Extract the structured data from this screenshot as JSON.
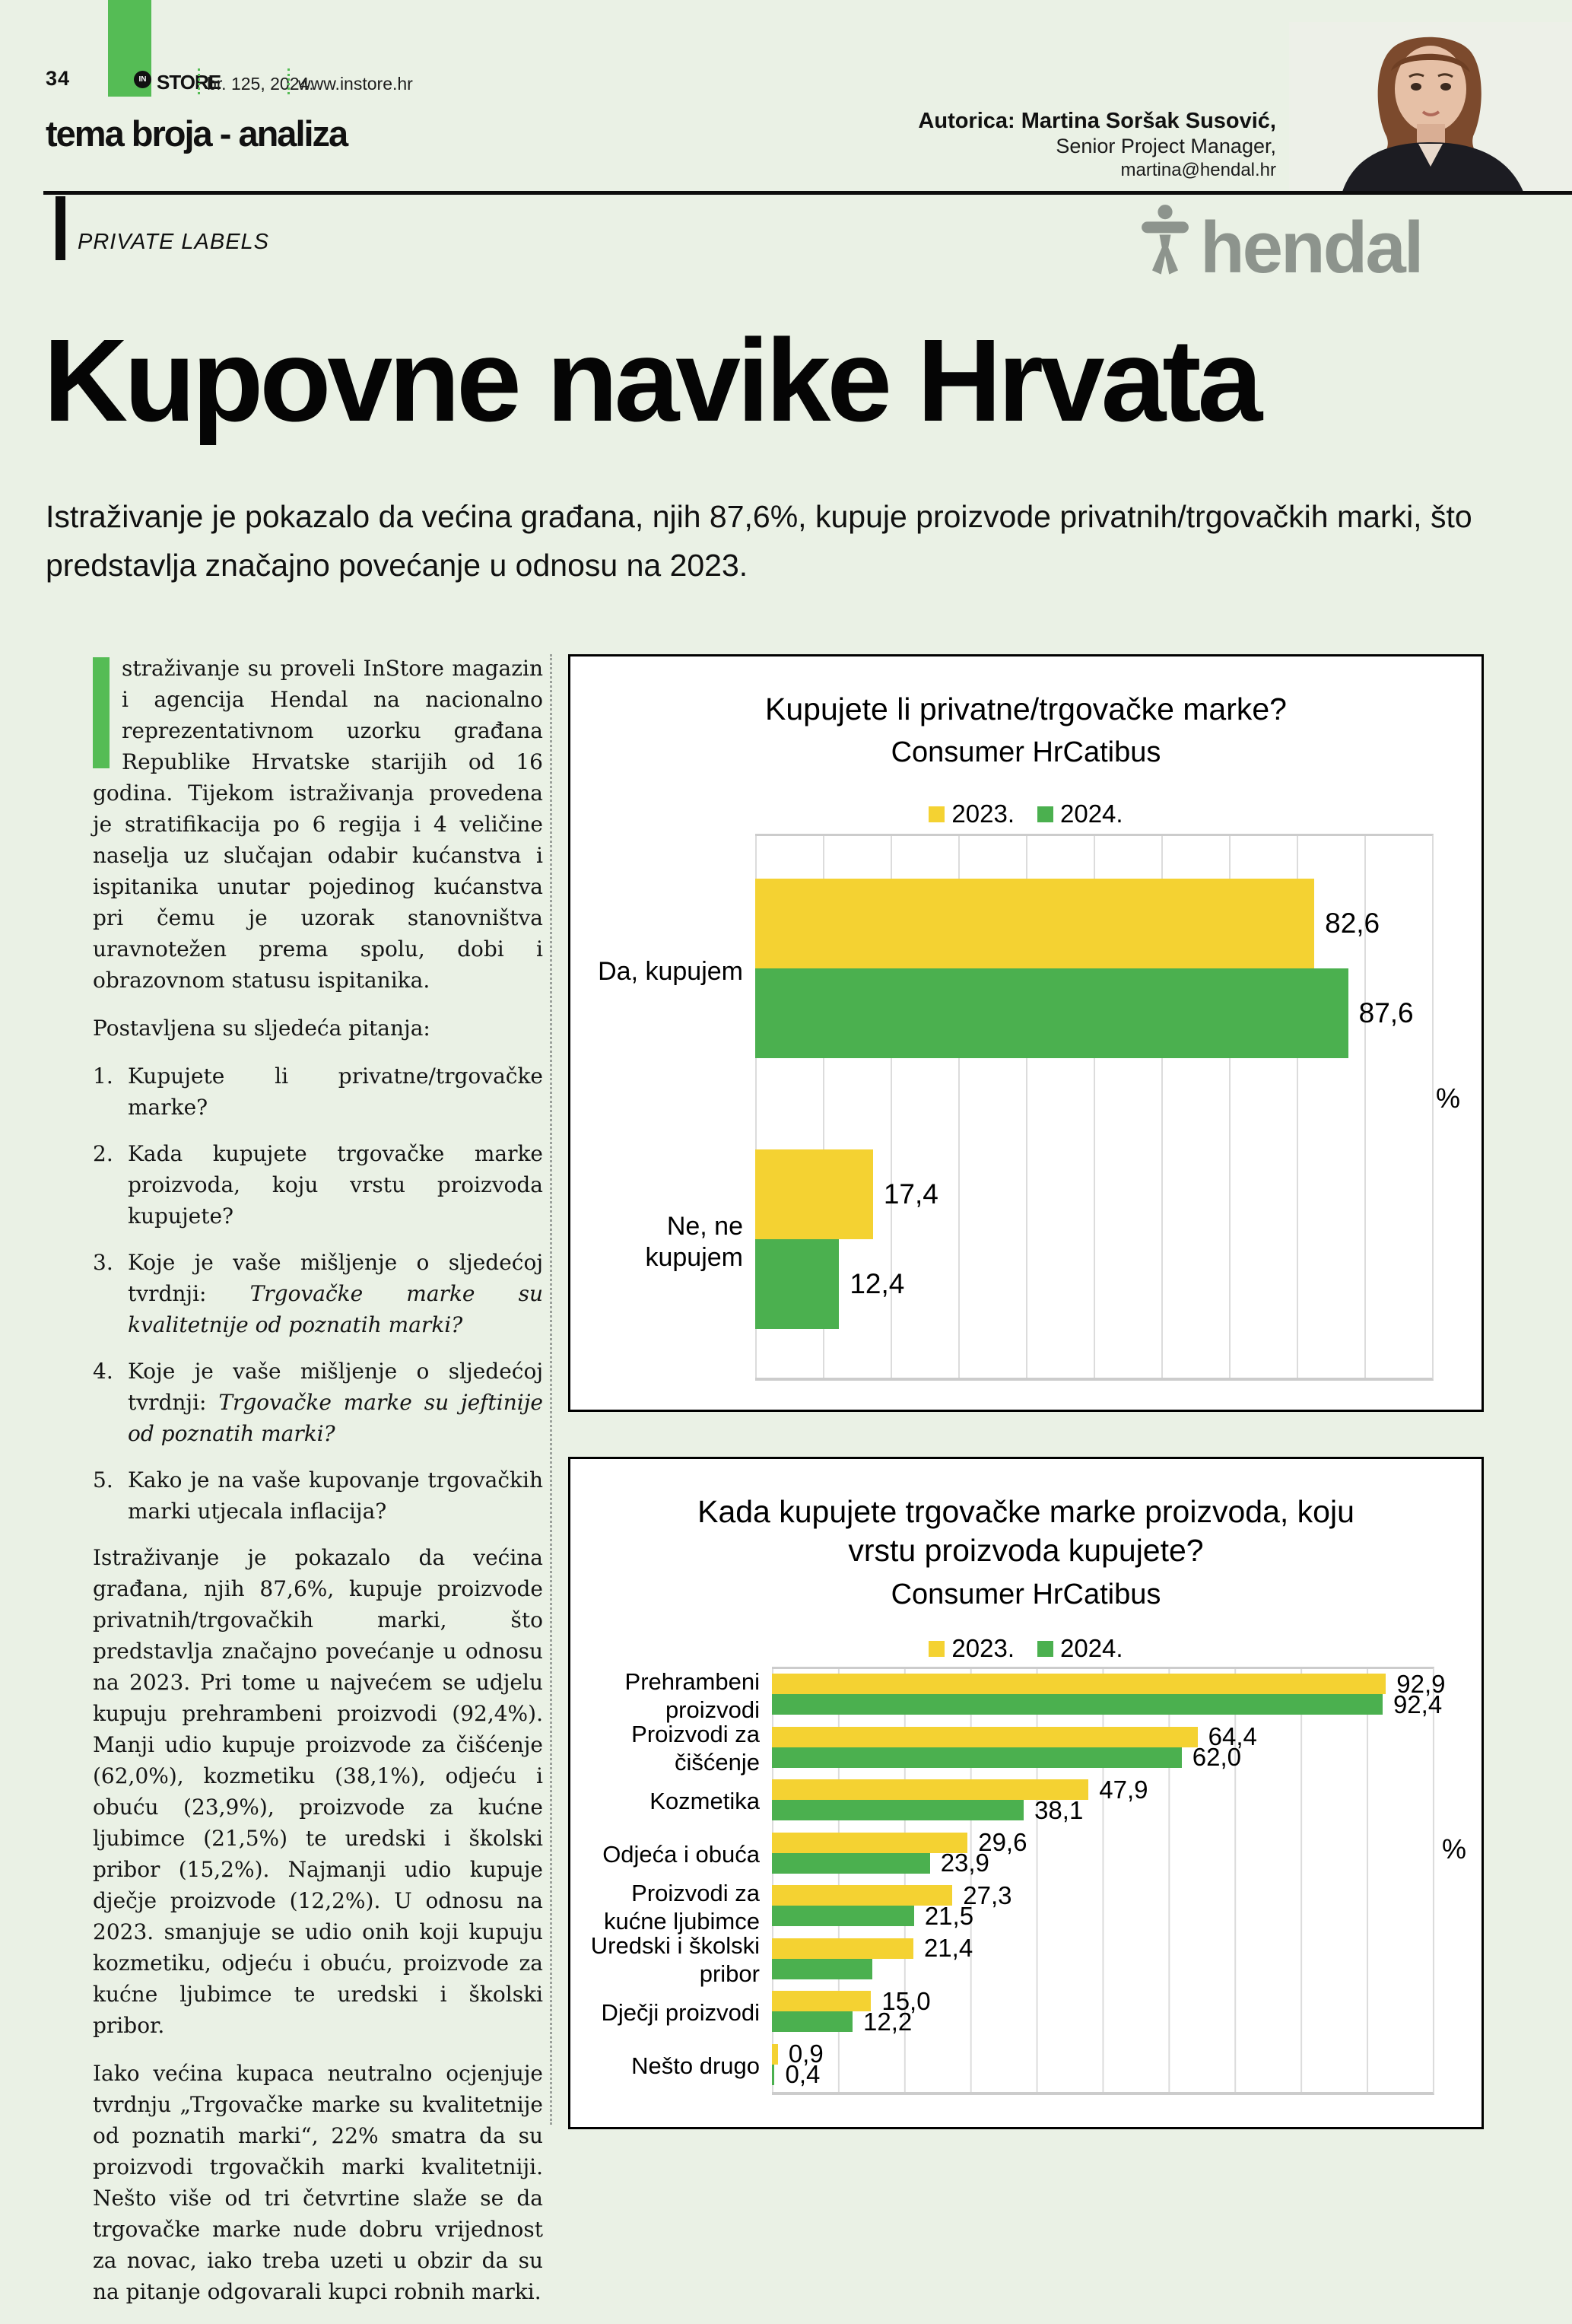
{
  "page": {
    "page_number": "34",
    "masthead": {
      "logo_in": "IN",
      "logo_store": "STORE",
      "issue": "br. 125, 2024.",
      "website": "www.instore.hr"
    },
    "section_title": "tema broja - analiza",
    "author": {
      "byline": "Autorica: Martina Soršak Susović,",
      "role": "Senior Project Manager,",
      "email": "martina@hendal.hr"
    },
    "kicker": "PRIVATE LABELS",
    "brand_logo": "hendal",
    "headline": "Kupovne navike Hrvata",
    "lead": "Istraživanje je pokazalo da većina građana, njih 87,6%, kupuje proizvode privatnih/trgovačkih marki, što predstavlja značajno povećanje u odnosu na 2023."
  },
  "article": {
    "para1": "straživanje su proveli InStore magazin i agencija Hendal na nacionalno reprezentativnom uzorku građana Republike Hrvatske starijih od 16 godina. Tijekom istraživanja provedena je stratifikacija po 6 regija i 4 veličine naselja uz slučajan odabir kućanstva i ispitanika unutar pojedinog kućanstva pri čemu je uzorak stanovništva uravnotežen prema spolu, dobi i obrazovnom statusu ispitanika.",
    "questions_intro": "Postavljena su sljedeća pitanja:",
    "questions": [
      {
        "num": "1.",
        "text": "Kupujete li privatne/trgovačke marke?",
        "italic": ""
      },
      {
        "num": "2.",
        "text": "Kada kupujete trgovačke marke proizvoda, koju vrstu proizvoda kupujete?",
        "italic": ""
      },
      {
        "num": "3.",
        "text": "Koje je vaše mišljenje o sljedećoj tvrdnji: ",
        "italic": "Trgovačke marke su kvalitetnije od poznatih marki?"
      },
      {
        "num": "4.",
        "text": "Koje je vaše mišljenje o sljedećoj tvrdnji: ",
        "italic": "Trgovačke marke su jeftinije od poznatih marki?"
      },
      {
        "num": "5.",
        "text": "Kako je na vaše kupovanje trgovačkih marki utjecala inflacija?",
        "italic": ""
      }
    ],
    "para2": "Istraživanje je pokazalo da većina građana, njih 87,6%,  kupuje proizvode privatnih/trgovačkih marki, što predstavlja značajno povećanje u odnosu na 2023. Pri tome u najvećem se udjelu kupuju prehrambeni proizvodi (92,4%). Manji udio kupuje proizvode za čišćenje (62,0%), kozmetiku (38,1%), odjeću i obuću (23,9%), proizvode za kućne ljubimce (21,5%) te uredski i školski pribor (15,2%). Najmanji udio kupuje dječje proizvode (12,2%). U odnosu na 2023. smanjuje se udio onih koji kupuju kozmetiku, odjeću i obuću, proizvode za kućne ljubimce te uredski i školski pribor.",
    "para3": "Iako većina kupaca neutralno ocjenjuje tvrdnju „Trgovačke marke su kvalitetnije od poznatih marki“, 22% smatra da su proizvodi trgovačkih marki kvalitetniji. Nešto više od tri četvrtine slaže se da trgovačke marke nude dobru vrijednost za novac, iako treba uzeti u obzir da su na pitanje odgovarali kupci robnih marki."
  },
  "colors": {
    "page_background": "#EAF1E5",
    "accent_green": "#55BC55",
    "bar_yellow": "#F4D232",
    "bar_green": "#4BB04F",
    "logo_gray": "#8D948D"
  },
  "chart_data": [
    {
      "type": "bar",
      "orientation": "horizontal",
      "title": "Kupujete li privatne/trgovačke marke?",
      "subtitle": "Consumer HrCatibus",
      "legend": [
        "2023.",
        "2024."
      ],
      "legend_colors": [
        "#F4D232",
        "#4BB04F"
      ],
      "legend_position": "top",
      "categories": [
        "Da, kupujem",
        "Ne, ne kupujem"
      ],
      "series": [
        {
          "name": "2023.",
          "values": [
            82.6,
            17.4
          ]
        },
        {
          "name": "2024.",
          "values": [
            87.6,
            12.4
          ]
        }
      ],
      "value_labels": [
        [
          "82,6",
          "17,4"
        ],
        [
          "87,6",
          "12,4"
        ]
      ],
      "axis_label": "%",
      "xlim": [
        0,
        100
      ],
      "grid": true
    },
    {
      "type": "bar",
      "orientation": "horizontal",
      "title": "Kada kupujete trgovačke marke proizvoda, koju vrstu proizvoda kupujete?",
      "subtitle": "Consumer HrCatibus",
      "legend": [
        "2023.",
        "2024."
      ],
      "legend_colors": [
        "#F4D232",
        "#4BB04F"
      ],
      "legend_position": "top",
      "categories": [
        "Prehrambeni proizvodi",
        "Proizvodi za čišćenje",
        "Kozmetika",
        "Odjeća i obuća",
        "Proizvodi za kućne ljubimce",
        "Uredski i školski pribor",
        "Dječji proizvodi",
        "Nešto drugo"
      ],
      "series": [
        {
          "name": "2023.",
          "values": [
            92.9,
            64.4,
            47.9,
            29.6,
            27.3,
            21.4,
            15.0,
            0.9
          ]
        },
        {
          "name": "2024.",
          "values": [
            92.4,
            62.0,
            38.1,
            23.9,
            21.5,
            15.2,
            12.2,
            0.4
          ]
        }
      ],
      "value_labels": [
        [
          "92,9",
          "64,4",
          "47,9",
          "29,6",
          "27,3",
          "21,4",
          "15,0",
          "0,9"
        ],
        [
          "92,4",
          "62,0",
          "38,1",
          "23,9",
          "21,5",
          "",
          "12,2",
          "0,4"
        ]
      ],
      "note": "2024 bar for 'Uredski i školski pribor' is drawn (≈15,2) but its data label is not shown in the chart",
      "axis_label": "%",
      "xlim": [
        0,
        100
      ],
      "grid": true
    }
  ]
}
